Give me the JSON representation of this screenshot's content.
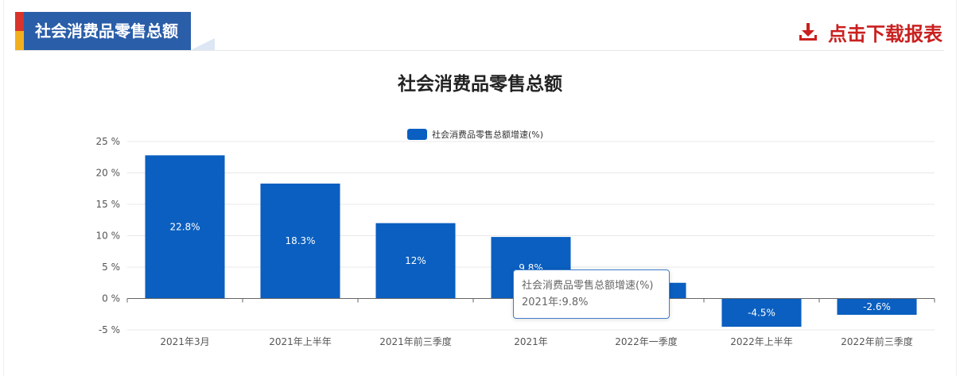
{
  "header": {
    "tab_title": "社会消费品零售总额",
    "download_label": "点击下载报表",
    "download_icon": "download-icon"
  },
  "colors": {
    "tab_blue": "#2a5ea8",
    "accent_red": "#c9201f",
    "bar": "#0a5fc0"
  },
  "chart_data": {
    "type": "bar",
    "title": "社会消费品零售总额",
    "categories": [
      "2021年3月",
      "2021年上半年",
      "2021年前三季度",
      "2021年",
      "2022年一季度",
      "2022年上半年",
      "2022年前三季度"
    ],
    "series": [
      {
        "name": "社会消费品零售总额增速(%)",
        "values": [
          22.8,
          18.3,
          12,
          9.8,
          2.5,
          -4.5,
          -2.6
        ],
        "data_labels": [
          "22.8%",
          "18.3%",
          "12%",
          "9.8%",
          "",
          "-4.5%",
          "-2.6%"
        ]
      }
    ],
    "yticks": [
      "25 %",
      "20 %",
      "15 %",
      "10 %",
      "5 %",
      "0 %",
      "-5 %"
    ],
    "ylim": [
      -5,
      25
    ],
    "grid": true,
    "legend": "top-center",
    "tooltip": {
      "title": "社会消费品零售总额增速(%)",
      "value": "2021年:9.8%"
    }
  }
}
